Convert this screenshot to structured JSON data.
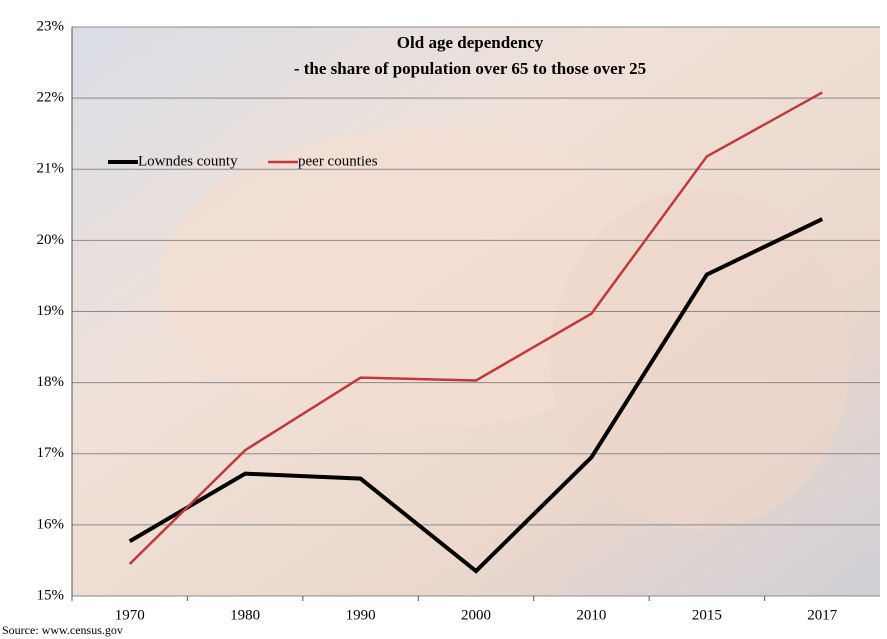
{
  "chart_data": {
    "type": "line",
    "title": "Old age dependency",
    "subtitle": "- the share of population over 65 to those over 25",
    "source": "Source: www.census.gov",
    "categories": [
      "1970",
      "1980",
      "1990",
      "2000",
      "2010",
      "2015",
      "2017"
    ],
    "series": [
      {
        "name": "Lowndes county",
        "color": "#000000",
        "values": [
          15.77,
          16.72,
          16.65,
          15.35,
          16.95,
          19.52,
          20.3
        ]
      },
      {
        "name": "peer counties",
        "color": "#c0393b",
        "values": [
          15.45,
          17.05,
          18.07,
          18.03,
          18.97,
          21.18,
          22.08
        ]
      }
    ],
    "ylim": [
      15,
      23
    ],
    "yticks": [
      {
        "value": 15,
        "label": "15%"
      },
      {
        "value": 16,
        "label": "16%"
      },
      {
        "value": 17,
        "label": "17%"
      },
      {
        "value": 18,
        "label": "18%"
      },
      {
        "value": 19,
        "label": "19%"
      },
      {
        "value": 20,
        "label": "20%"
      },
      {
        "value": 21,
        "label": "21%"
      },
      {
        "value": 22,
        "label": "22%"
      },
      {
        "value": 23,
        "label": "23%"
      }
    ],
    "grid": true,
    "legend": "upper-left"
  }
}
